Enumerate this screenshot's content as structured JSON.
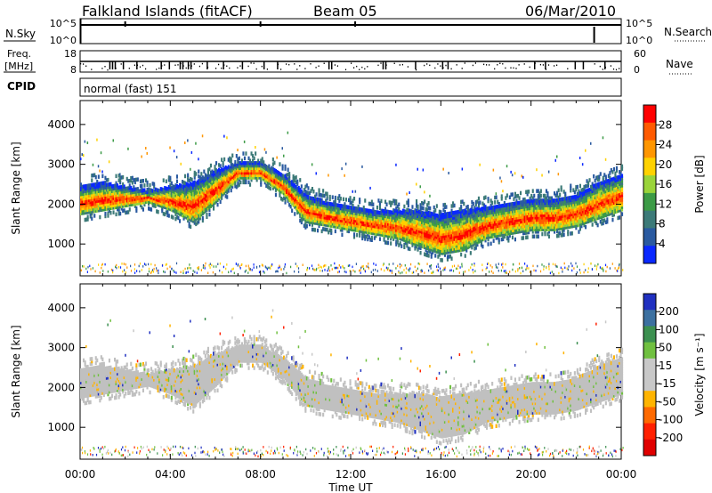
{
  "header": {
    "title": "Falkland Islands (fitACF)",
    "beam": "Beam 05",
    "date": "06/Mar/2010"
  },
  "status_panels": {
    "nsky": {
      "label": "N.Sky",
      "ticks": [
        "10^5",
        "10^0"
      ]
    },
    "nsearch": {
      "label": "N.Search"
    },
    "freq": {
      "label_top": "Freq.",
      "label_unit": "[MHz]",
      "ticks": [
        "18",
        "8"
      ]
    },
    "nave": {
      "label": "Nave",
      "ticks": [
        "60",
        "0"
      ]
    },
    "cpid": {
      "label": "CPID",
      "value": "normal (fast) 151"
    }
  },
  "chart_data": [
    {
      "type": "heatmap",
      "name": "power",
      "ylabel": "Slant Range [km]",
      "xlabel": "",
      "ylim": [
        200,
        4600
      ],
      "xlim_hours": [
        0,
        24
      ],
      "y_ticks": [
        1000,
        2000,
        3000,
        4000
      ],
      "colorbar": {
        "label": "Power [dB]",
        "ticks": [
          "28",
          "24",
          "20",
          "16",
          "12",
          "8",
          "4"
        ],
        "colors": [
          "#ff0000",
          "#ff5a00",
          "#ff9600",
          "#ffd200",
          "#9ad43a",
          "#3c9b46",
          "#3c7a78",
          "#2a5aa0",
          "#0a28ff"
        ]
      },
      "echo_band": {
        "x_hours": [
          0,
          1,
          2,
          3,
          4,
          5,
          6,
          7,
          8,
          9,
          10,
          11,
          12,
          13,
          14,
          15,
          16,
          17,
          18,
          19,
          20,
          21,
          22,
          23,
          24
        ],
        "low_km": [
          1700,
          1800,
          1900,
          2000,
          1800,
          1500,
          2000,
          2600,
          2600,
          2200,
          1500,
          1400,
          1300,
          1200,
          1100,
          900,
          700,
          800,
          1100,
          1200,
          1300,
          1300,
          1400,
          1600,
          1800
        ],
        "high_km": [
          2400,
          2500,
          2400,
          2300,
          2400,
          2500,
          2800,
          3000,
          3000,
          2700,
          2200,
          2000,
          1900,
          1800,
          1800,
          1800,
          1700,
          1800,
          1900,
          2000,
          2100,
          2100,
          2200,
          2500,
          2700
        ]
      }
    },
    {
      "type": "heatmap",
      "name": "velocity",
      "ylabel": "Slant Range [km]",
      "xlabel": "Time UT",
      "ylim": [
        200,
        4600
      ],
      "xlim_hours": [
        0,
        24
      ],
      "y_ticks": [
        1000,
        2000,
        3000,
        4000
      ],
      "x_ticks": [
        "00:00",
        "04:00",
        "08:00",
        "12:00",
        "16:00",
        "20:00",
        "00:00"
      ],
      "colorbar": {
        "label": "Velocity [m s⁻¹]",
        "ticks": [
          "200",
          "100",
          "50",
          "15",
          "-15",
          "-50",
          "-100",
          "-200"
        ],
        "colors": [
          "#2030c0",
          "#3c70a0",
          "#3c9050",
          "#70c040",
          "#c8c8c8",
          "#c8c8c8",
          "#ffb400",
          "#ff6a00",
          "#ff2000",
          "#e00000"
        ]
      }
    }
  ]
}
